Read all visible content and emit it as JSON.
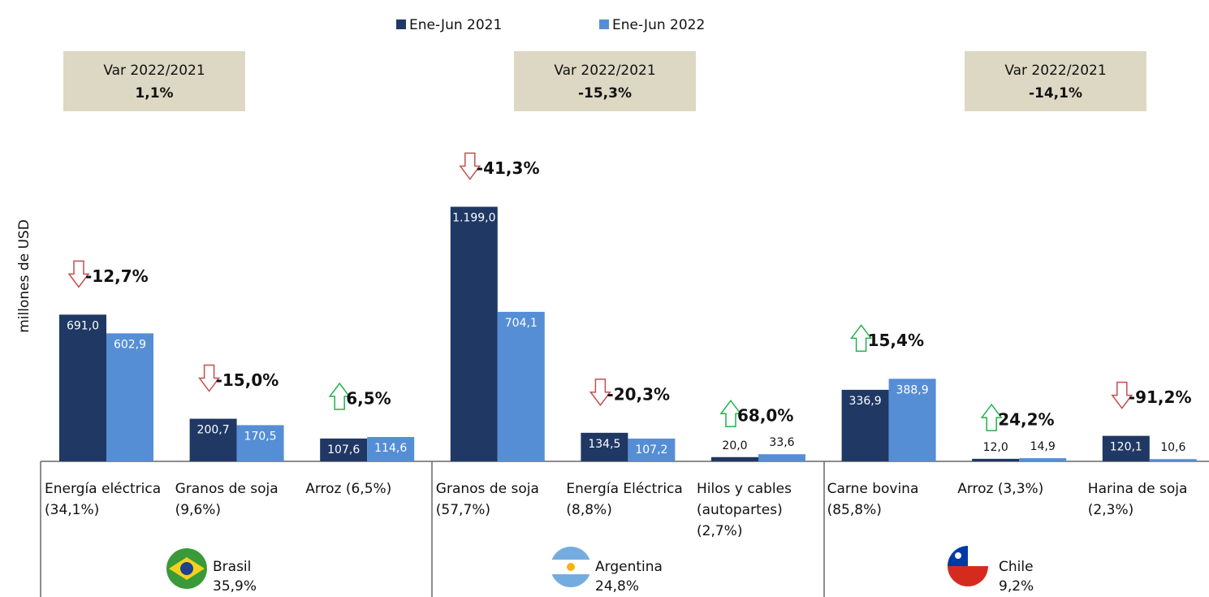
{
  "chart_data": {
    "type": "bar",
    "y_label": "millones de USD",
    "categories": [
      [
        "Energía eléctrica",
        "(34,1%)"
      ],
      [
        "Granos de soja",
        "(9,6%)"
      ],
      [
        "Arroz  (6,5%)"
      ],
      [
        "Granos de soja",
        "(57,7%)"
      ],
      [
        "Energía Eléctrica",
        "(8,8%)"
      ],
      [
        "Hilos y cables",
        "(autopartes)",
        "(2,7%)"
      ],
      [
        "Carne bovina",
        "(85,8%)"
      ],
      [
        "Arroz (3,3%)"
      ],
      [
        "Harina de soja",
        "(2,3%)"
      ]
    ],
    "series": [
      {
        "name": "Ene-Jun 2021",
        "color": "#1f3864",
        "values": [
          691.0,
          200.7,
          107.6,
          1199.0,
          134.5,
          20.0,
          336.9,
          12.0,
          120.1
        ],
        "value_labels": [
          "691,0",
          "200,7",
          "107,6",
          "1.199,0",
          "134,5",
          "20,0",
          "336,9",
          "12,0",
          "120,1"
        ]
      },
      {
        "name": "Ene-Jun 2022",
        "color": "#558ed5",
        "values": [
          602.9,
          170.5,
          114.6,
          704.1,
          107.2,
          33.6,
          388.9,
          14.9,
          10.6
        ],
        "value_labels": [
          "602,9",
          "170,5",
          "114,6",
          "704,1",
          "107,2",
          "33,6",
          "388,9",
          "14,9",
          "10,6"
        ]
      }
    ],
    "changes": [
      -12.7,
      -15.0,
      6.5,
      -41.3,
      -20.3,
      68.0,
      15.4,
      24.2,
      -91.2
    ],
    "change_labels": [
      "-12,7%",
      "-15,0%",
      "6,5%",
      "-41,3%",
      "-20,3%",
      "68,0%",
      "15,4%",
      "24,2%",
      "-91,2%"
    ],
    "groups": [
      {
        "name": "Brasil",
        "share": {
          "value": 35.9,
          "label": "35,9%"
        },
        "var_title": "Var 2022/2021",
        "var": {
          "value": 1.1,
          "label": "1,1%"
        }
      },
      {
        "name": "Argentina",
        "share": {
          "value": 24.8,
          "label": "24,8%"
        },
        "var_title": "Var 2022/2021",
        "var": {
          "value": -15.3,
          "label": "-15,3%"
        }
      },
      {
        "name": "Chile",
        "share": {
          "value": 9.2,
          "label": "9,2%"
        },
        "var_title": "Var 2022/2021",
        "var": {
          "value": -14.1,
          "label": "-14,1%"
        }
      }
    ],
    "ylim": [
      0,
      1400
    ],
    "legend": "top"
  }
}
